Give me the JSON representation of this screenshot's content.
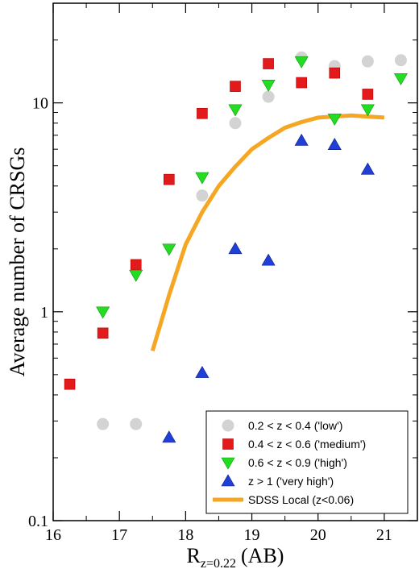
{
  "chart_data": {
    "type": "scatter",
    "title": "",
    "xlabel": {
      "main": "R",
      "sub": "z=0.22",
      "unit": "(AB)"
    },
    "ylabel": "Average number of CRSGs",
    "xlim": [
      16,
      21.5
    ],
    "ylim": [
      0.1,
      30
    ],
    "yscale": "log",
    "xticks": [
      16,
      17,
      18,
      19,
      20,
      21
    ],
    "xtick_labels": [
      "16",
      "17",
      "18",
      "19",
      "20",
      "21"
    ],
    "yticks": [
      0.1,
      1,
      10
    ],
    "ytick_labels": [
      "0.1",
      "1",
      "10"
    ],
    "grid": false,
    "legend_position": "bottom-right",
    "series": [
      {
        "name": "0.2 < z < 0.4 ('low')",
        "marker": "circle",
        "color": "#d3d3d3",
        "x": [
          16.75,
          17.25,
          18.25,
          18.75,
          19.25,
          19.75,
          20.25,
          20.75,
          21.25
        ],
        "y": [
          0.29,
          0.29,
          3.6,
          8.0,
          10.7,
          16.5,
          15.0,
          15.8,
          16.0
        ]
      },
      {
        "name": "0.4 < z < 0.6 ('medium')",
        "marker": "square",
        "color": "#e31a1c",
        "x": [
          16.25,
          16.75,
          17.25,
          17.75,
          18.25,
          18.75,
          19.25,
          19.75,
          20.25,
          20.75
        ],
        "y": [
          0.45,
          0.79,
          1.68,
          4.3,
          8.9,
          12.0,
          15.4,
          12.5,
          13.9,
          11.0
        ]
      },
      {
        "name": "0.6 < z < 0.9 ('high')",
        "marker": "triangle-down",
        "color": "#22dd22",
        "x": [
          16.75,
          17.25,
          17.75,
          18.25,
          18.75,
          19.25,
          19.75,
          20.25,
          20.75,
          21.25
        ],
        "y": [
          1.0,
          1.5,
          2.0,
          4.4,
          9.3,
          12.2,
          15.8,
          8.4,
          9.3,
          13.1
        ]
      },
      {
        "name": "z > 1 ('very high')",
        "marker": "triangle-up",
        "color": "#1f3fd8",
        "x": [
          17.75,
          18.25,
          18.75,
          19.25,
          19.75,
          20.25,
          20.75
        ],
        "y": [
          0.25,
          0.51,
          2.0,
          1.76,
          6.6,
          6.3,
          4.8
        ]
      },
      {
        "name": "SDSS Local (z<0.06)",
        "marker": "line",
        "color": "#f5a623",
        "x": [
          17.5,
          17.75,
          18.0,
          18.25,
          18.5,
          18.75,
          19.0,
          19.25,
          19.5,
          19.75,
          20.0,
          20.25,
          20.5,
          20.75,
          21.0
        ],
        "y": [
          0.65,
          1.2,
          2.1,
          3.0,
          4.0,
          4.95,
          6.0,
          6.8,
          7.6,
          8.1,
          8.5,
          8.6,
          8.7,
          8.6,
          8.5
        ]
      }
    ]
  }
}
